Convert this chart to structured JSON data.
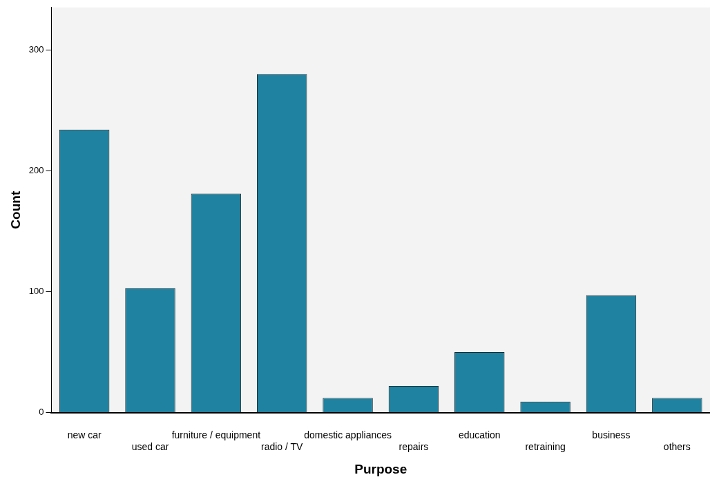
{
  "chart_data": {
    "type": "bar",
    "xlabel": "Purpose",
    "ylabel": "Count",
    "categories": [
      "new car",
      "used car",
      "furniture / equipment",
      "radio / TV",
      "domestic appliances",
      "repairs",
      "education",
      "retraining",
      "business",
      "others"
    ],
    "values": [
      234,
      103,
      181,
      280,
      12,
      22,
      50,
      9,
      97,
      12
    ],
    "color": "#1f82a0",
    "ylim": [
      0,
      335
    ],
    "yticks": [
      0,
      100,
      200,
      300
    ],
    "grid": false,
    "legend": false
  }
}
